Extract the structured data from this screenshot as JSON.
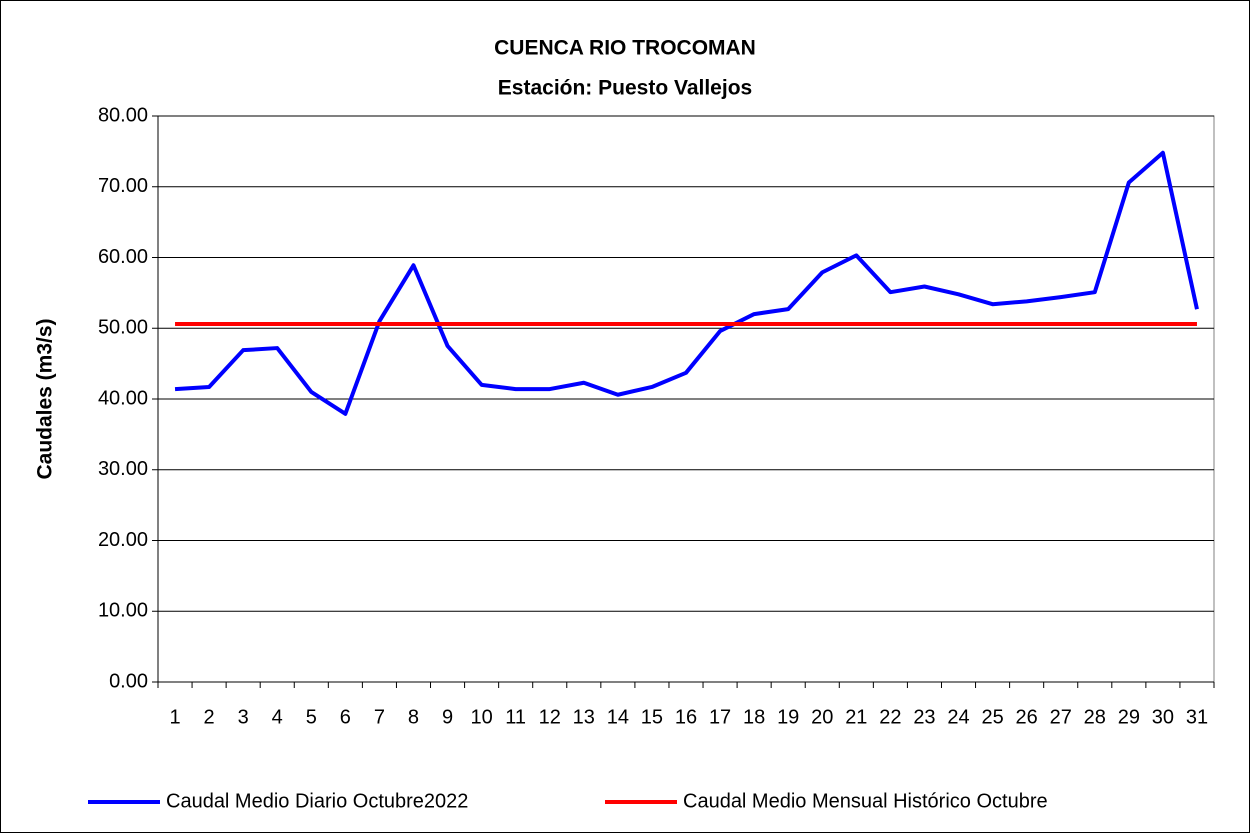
{
  "chart_data": {
    "type": "line",
    "title": "CUENCA RIO TROCOMAN",
    "subtitle": "Estación: Puesto Vallejos",
    "y_label": "Caudales (m3/s)",
    "categories": [
      "1",
      "2",
      "3",
      "4",
      "5",
      "6",
      "7",
      "8",
      "9",
      "10",
      "11",
      "12",
      "13",
      "14",
      "15",
      "16",
      "17",
      "18",
      "19",
      "20",
      "21",
      "22",
      "23",
      "24",
      "25",
      "26",
      "27",
      "28",
      "29",
      "30",
      "31"
    ],
    "series": [
      {
        "name": "Caudal Medio Diario Octubre2022",
        "color": "#0000ff",
        "values": [
          41.4,
          41.7,
          46.9,
          47.2,
          41.0,
          37.9,
          51.0,
          58.9,
          47.5,
          42.0,
          41.4,
          41.4,
          42.3,
          40.6,
          41.7,
          43.7,
          49.6,
          52.0,
          52.7,
          57.9,
          60.3,
          55.1,
          55.9,
          54.8,
          53.4,
          53.8,
          54.4,
          55.1,
          70.6,
          74.8,
          52.7
        ]
      },
      {
        "name": "Caudal Medio Mensual Histórico Octubre",
        "color": "#ff0000",
        "values": [
          50.6,
          50.6,
          50.6,
          50.6,
          50.6,
          50.6,
          50.6,
          50.6,
          50.6,
          50.6,
          50.6,
          50.6,
          50.6,
          50.6,
          50.6,
          50.6,
          50.6,
          50.6,
          50.6,
          50.6,
          50.6,
          50.6,
          50.6,
          50.6,
          50.6,
          50.6,
          50.6,
          50.6,
          50.6,
          50.6,
          50.6
        ]
      }
    ],
    "ylim": [
      0,
      80
    ],
    "yticks": [
      {
        "value": 0,
        "label": "0.00"
      },
      {
        "value": 10,
        "label": "10.00"
      },
      {
        "value": 20,
        "label": "20.00"
      },
      {
        "value": 30,
        "label": "30.00"
      },
      {
        "value": 40,
        "label": "40.00"
      },
      {
        "value": 50,
        "label": "50.00"
      },
      {
        "value": 60,
        "label": "60.00"
      },
      {
        "value": 70,
        "label": "70.00"
      },
      {
        "value": 80,
        "label": "80.00"
      }
    ],
    "grid": true,
    "legend": "bottom"
  }
}
